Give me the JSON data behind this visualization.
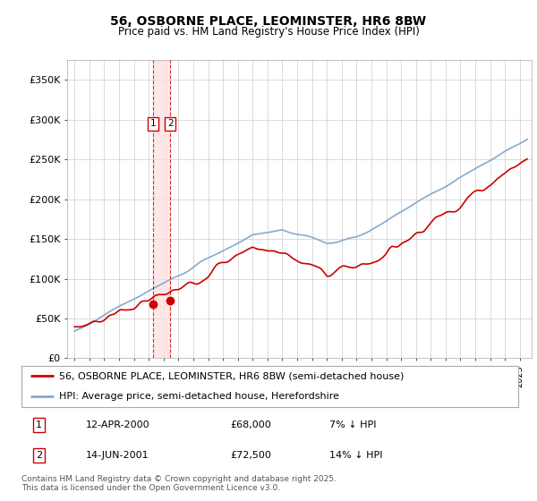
{
  "title": "56, OSBORNE PLACE, LEOMINSTER, HR6 8BW",
  "subtitle": "Price paid vs. HM Land Registry's House Price Index (HPI)",
  "legend_line1": "56, OSBORNE PLACE, LEOMINSTER, HR6 8BW (semi-detached house)",
  "legend_line2": "HPI: Average price, semi-detached house, Herefordshire",
  "footer": "Contains HM Land Registry data © Crown copyright and database right 2025.\nThis data is licensed under the Open Government Licence v3.0.",
  "annotation1_date": "12-APR-2000",
  "annotation1_price": "£68,000",
  "annotation1_hpi": "7% ↓ HPI",
  "annotation2_date": "14-JUN-2001",
  "annotation2_price": "£72,500",
  "annotation2_hpi": "14% ↓ HPI",
  "sale1_x": 2000.27,
  "sale1_y": 68000,
  "sale2_x": 2001.45,
  "sale2_y": 72500,
  "vline1_x": 2000.27,
  "vline2_x": 2001.45,
  "ylim": [
    0,
    375000
  ],
  "xlim": [
    1994.5,
    2025.8
  ],
  "red_color": "#cc0000",
  "blue_color": "#88aacc",
  "vline_color": "#cc0000",
  "vline_fill": "#ffdddd",
  "background_color": "#ffffff",
  "grid_color": "#cccccc"
}
